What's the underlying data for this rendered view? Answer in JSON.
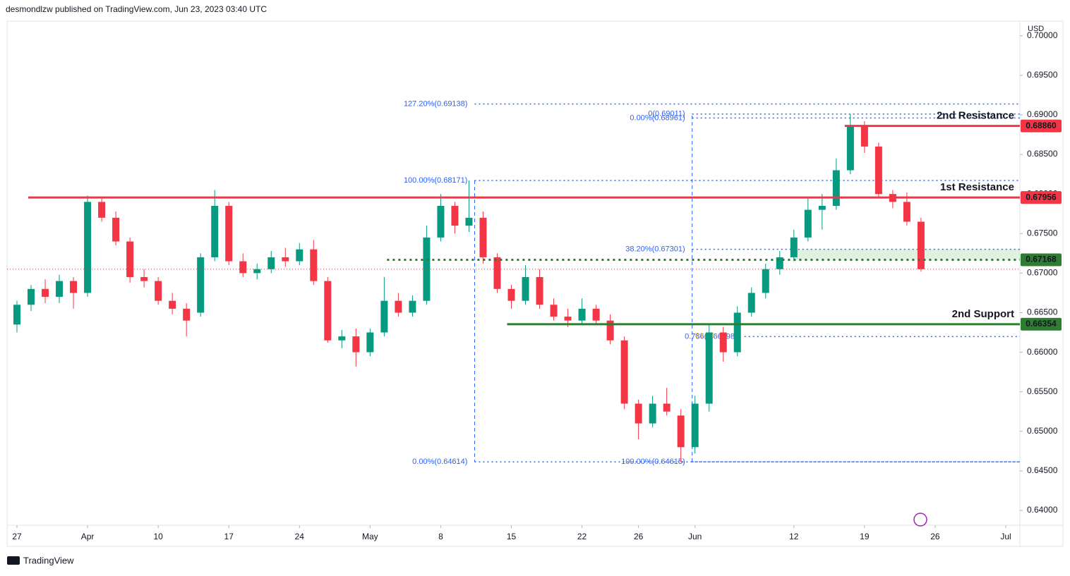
{
  "chart_data": {
    "type": "candlestick",
    "header": "desmondlzw published on TradingView.com, Jun 23, 2023 03:40 UTC",
    "currency": "USD",
    "brand": "TradingView",
    "xlim": [
      -0.7,
      71
    ],
    "ylim": [
      0.63813,
      0.70185
    ],
    "xticks": [
      {
        "value": 0,
        "label": "27"
      },
      {
        "value": 5,
        "label": "Apr"
      },
      {
        "value": 10,
        "label": "10"
      },
      {
        "value": 15,
        "label": "17"
      },
      {
        "value": 20,
        "label": "24"
      },
      {
        "value": 25,
        "label": "May"
      },
      {
        "value": 30,
        "label": "8"
      },
      {
        "value": 35,
        "label": "15"
      },
      {
        "value": 40,
        "label": "22"
      },
      {
        "value": 44,
        "label": "26"
      },
      {
        "value": 48,
        "label": "Jun"
      },
      {
        "value": 55,
        "label": "12"
      },
      {
        "value": 60,
        "label": "19"
      },
      {
        "value": 65,
        "label": "26"
      },
      {
        "value": 70,
        "label": "Jul"
      }
    ],
    "yticks": [
      {
        "value": 0.64,
        "label": "0.64000"
      },
      {
        "value": 0.645,
        "label": "0.64500"
      },
      {
        "value": 0.65,
        "label": "0.65000"
      },
      {
        "value": 0.655,
        "label": "0.65500"
      },
      {
        "value": 0.66,
        "label": "0.66000"
      },
      {
        "value": 0.665,
        "label": "0.66500"
      },
      {
        "value": 0.67,
        "label": "0.67000"
      },
      {
        "value": 0.675,
        "label": "0.67500"
      },
      {
        "value": 0.68,
        "label": "0.68000"
      },
      {
        "value": 0.685,
        "label": "0.68500"
      },
      {
        "value": 0.69,
        "label": "0.69000"
      },
      {
        "value": 0.695,
        "label": "0.69500"
      },
      {
        "value": 0.7,
        "label": "0.70000"
      }
    ],
    "up_color": "#089981",
    "down_color": "#f23645",
    "x": [
      0,
      1,
      2,
      3,
      4,
      5,
      6,
      7,
      8,
      9,
      10,
      11,
      12,
      13,
      14,
      15,
      16,
      17,
      18,
      19,
      20,
      21,
      22,
      23,
      24,
      25,
      26,
      27,
      28,
      29,
      30,
      31,
      32,
      33,
      34,
      35,
      36,
      37,
      38,
      39,
      40,
      41,
      42,
      43,
      44,
      45,
      46,
      47,
      48,
      49,
      50,
      51,
      52,
      53,
      54,
      55,
      56,
      57,
      58,
      59,
      60,
      61,
      62,
      63,
      64
    ],
    "open": [
      0.6635,
      0.666,
      0.668,
      0.667,
      0.669,
      0.6675,
      0.679,
      0.677,
      0.674,
      0.6695,
      0.669,
      0.6665,
      0.6655,
      0.665,
      0.672,
      0.6785,
      0.6715,
      0.67,
      0.6705,
      0.672,
      0.6715,
      0.673,
      0.669,
      0.6615,
      0.662,
      0.66,
      0.6625,
      0.6665,
      0.665,
      0.6665,
      0.6745,
      0.6785,
      0.676,
      0.677,
      0.672,
      0.668,
      0.6665,
      0.6695,
      0.666,
      0.6645,
      0.664,
      0.6655,
      0.664,
      0.6615,
      0.6535,
      0.651,
      0.6535,
      0.652,
      0.648,
      0.6535,
      0.6625,
      0.66,
      0.665,
      0.6675,
      0.6705,
      0.672,
      0.6745,
      0.678,
      0.6785,
      0.683,
      0.6885,
      0.686,
      0.68,
      0.679,
      0.6765
    ],
    "high": [
      0.6665,
      0.6685,
      0.6692,
      0.6698,
      0.6695,
      0.6798,
      0.6795,
      0.6778,
      0.6745,
      0.6705,
      0.6695,
      0.6675,
      0.6662,
      0.6725,
      0.6805,
      0.679,
      0.6725,
      0.6712,
      0.6728,
      0.6732,
      0.6738,
      0.6742,
      0.6695,
      0.6628,
      0.663,
      0.663,
      0.6695,
      0.6675,
      0.6672,
      0.676,
      0.68,
      0.679,
      0.6817,
      0.6778,
      0.6725,
      0.6685,
      0.671,
      0.6705,
      0.6668,
      0.6655,
      0.6668,
      0.666,
      0.6648,
      0.662,
      0.654,
      0.6545,
      0.6555,
      0.6528,
      0.6545,
      0.6635,
      0.6632,
      0.6658,
      0.6682,
      0.6712,
      0.6728,
      0.6755,
      0.6795,
      0.68,
      0.6845,
      0.6901,
      0.6892,
      0.6865,
      0.6805,
      0.6802,
      0.677
    ],
    "low": [
      0.6625,
      0.6652,
      0.6662,
      0.6662,
      0.6655,
      0.667,
      0.6765,
      0.6735,
      0.6688,
      0.6682,
      0.666,
      0.6648,
      0.662,
      0.6645,
      0.6715,
      0.671,
      0.6695,
      0.6692,
      0.67,
      0.6708,
      0.671,
      0.6685,
      0.6612,
      0.6605,
      0.6582,
      0.6595,
      0.662,
      0.6645,
      0.6645,
      0.666,
      0.674,
      0.675,
      0.6752,
      0.6712,
      0.6675,
      0.6655,
      0.666,
      0.6655,
      0.664,
      0.6632,
      0.6635,
      0.6635,
      0.661,
      0.6528,
      0.649,
      0.6505,
      0.652,
      0.6461,
      0.6472,
      0.6525,
      0.6588,
      0.6595,
      0.6645,
      0.6668,
      0.6698,
      0.6715,
      0.674,
      0.6755,
      0.678,
      0.6825,
      0.6852,
      0.6795,
      0.6782,
      0.676,
      0.6702
    ],
    "close": [
      0.666,
      0.668,
      0.667,
      0.669,
      0.6675,
      0.679,
      0.677,
      0.674,
      0.6695,
      0.669,
      0.6665,
      0.6655,
      0.664,
      0.672,
      0.6785,
      0.6715,
      0.67,
      0.6705,
      0.672,
      0.6715,
      0.673,
      0.669,
      0.6615,
      0.662,
      0.66,
      0.6625,
      0.6665,
      0.665,
      0.6665,
      0.6745,
      0.6785,
      0.676,
      0.677,
      0.672,
      0.668,
      0.6665,
      0.6695,
      0.666,
      0.6645,
      0.664,
      0.6655,
      0.664,
      0.6615,
      0.6535,
      0.651,
      0.6535,
      0.6525,
      0.648,
      0.6535,
      0.6625,
      0.66,
      0.665,
      0.6675,
      0.6705,
      0.672,
      0.6745,
      0.678,
      0.6785,
      0.683,
      0.6885,
      0.686,
      0.68,
      0.679,
      0.6765,
      0.6705
    ],
    "levels": [
      {
        "name": "2nd Resistance",
        "value": 0.6886,
        "label": "0.68860",
        "color": "#f23645",
        "start": 58.6,
        "style": "solid"
      },
      {
        "name": "1st Resistance",
        "value": 0.67956,
        "label": "0.67956",
        "color": "#f23645",
        "start": 0.8,
        "style": "solid"
      },
      {
        "value": 0.67168,
        "label": "0.67168",
        "color": "#2e7d32",
        "start": 26.2,
        "style": "dotted"
      },
      {
        "name": "2nd Support",
        "value": 0.66354,
        "label": "0.66354",
        "color": "#2e7d32",
        "start": 34.7,
        "style": "solid"
      }
    ],
    "fib_levels": [
      {
        "value": 0.69138,
        "label": "127.20%(0.69138)",
        "start": 32.4
      },
      {
        "value": 0.69011,
        "label": "0(0.69011)",
        "start": 47.8
      },
      {
        "value": 0.68961,
        "label": "0.00%(0.68961)",
        "start": 47.8
      },
      {
        "value": 0.68171,
        "label": "100.00%(0.68171)",
        "start": 32.4
      },
      {
        "value": 0.67301,
        "label": "38.20%(0.67301)",
        "start": 47.8
      },
      {
        "value": 0.66198,
        "label": "0.786(0.66198)",
        "start": 51.5
      },
      {
        "value": 0.64614,
        "label": "0.00%(0.64614)",
        "start": 32.4
      },
      {
        "value": 0.64615,
        "label": "100.00%(0.64615)",
        "start": 47.8
      }
    ],
    "fib_extra_label": "61.80"
  }
}
